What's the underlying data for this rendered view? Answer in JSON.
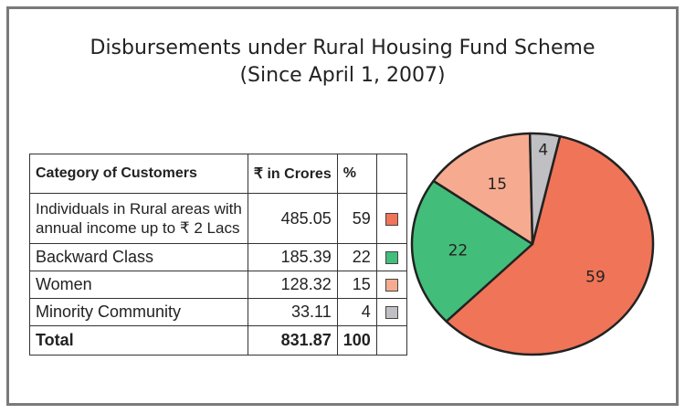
{
  "title": {
    "line1": "Disbursements  under Rural Housing Fund Scheme",
    "line2": "(Since April 1, 2007)"
  },
  "table": {
    "headers": {
      "category": "Category of Customers",
      "amount": "₹ in Crores",
      "percent": "%"
    },
    "rows": [
      {
        "category_line1": "Individuals in Rural areas with",
        "category_line2": "annual income up to ₹ 2 Lacs",
        "amount": "485.05",
        "percent": "59"
      },
      {
        "category": "Backward Class",
        "amount": "185.39",
        "percent": "22"
      },
      {
        "category": "Women",
        "amount": "128.32",
        "percent": "15"
      },
      {
        "category": "Minority Community",
        "amount": "33.11",
        "percent": "4"
      }
    ],
    "total": {
      "label": "Total",
      "amount": "831.87",
      "percent": "100"
    }
  },
  "chart_data": {
    "type": "pie",
    "title": "Disbursements  under Rural Housing Fund Scheme (Since April 1, 2007)",
    "categories": [
      "Individuals in Rural areas with annual income up to ₹ 2 Lacs",
      "Backward Class",
      "Women",
      "Minority Community"
    ],
    "values": [
      59,
      22,
      15,
      4
    ],
    "amounts_in_crores": [
      485.05,
      185.39,
      128.32,
      33.11
    ],
    "labels": [
      "59",
      "22",
      "15",
      "4"
    ],
    "colors": [
      "#f07458",
      "#43bd7a",
      "#f6ab90",
      "#c0c0c4"
    ]
  }
}
